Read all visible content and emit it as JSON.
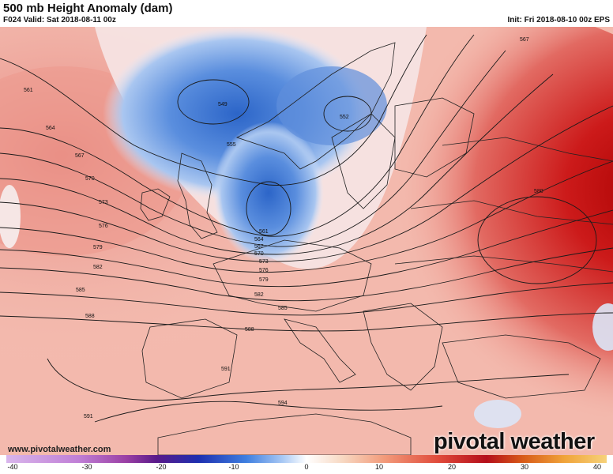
{
  "header": {
    "title": "500 mb Height Anomaly (dam)",
    "valid": "F024 Valid: Sat 2018-08-11 00z",
    "init": "Init: Fri 2018-08-10 00z EPS"
  },
  "footer": {
    "url": "www.pivotalweather.com",
    "logo": "pivotal weather"
  },
  "colorbar": {
    "ticks": [
      "-40",
      "-30",
      "-20",
      "-10",
      "0",
      "10",
      "20",
      "30",
      "40"
    ],
    "range": [
      -40,
      40
    ],
    "colors": {
      "strong_negative": "#c89ae0",
      "negative": "#2f6fd0",
      "neutral": "#ffffff",
      "positive": "#f2a07a",
      "strong_positive": "#b30000"
    }
  },
  "map": {
    "contour_labels": [
      "561",
      "564",
      "567",
      "570",
      "573",
      "576",
      "579",
      "582",
      "585",
      "588",
      "591",
      "594",
      "549",
      "555",
      "552",
      "580",
      "567",
      "561",
      "564",
      "567",
      "570",
      "573",
      "576",
      "579",
      "582",
      "585",
      "588",
      "591"
    ]
  }
}
